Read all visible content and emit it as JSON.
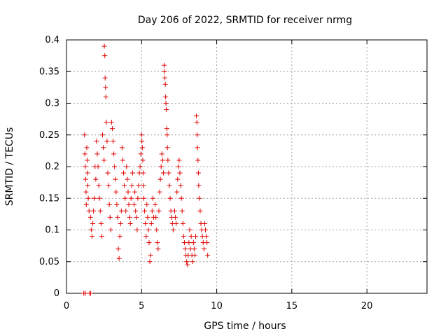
{
  "chart_data": {
    "type": "scatter",
    "title": "Day 206 of 2022, SRMTID for receiver nrmg",
    "xlabel": "GPS time / hours",
    "ylabel": "SRMTID / TECUs",
    "xlim": [
      0,
      24
    ],
    "ylim": [
      0,
      0.4
    ],
    "x_ticks": [
      0,
      5,
      10,
      15,
      20
    ],
    "x_tick_labels": [
      "0",
      "5",
      "10",
      "15",
      "20"
    ],
    "y_ticks": [
      0,
      0.05,
      0.1,
      0.15,
      0.2,
      0.25,
      0.3,
      0.35,
      0.4
    ],
    "y_tick_labels": [
      "0",
      "0.05",
      "0.1",
      "0.15",
      "0.2",
      "0.25",
      "0.3",
      "0.35",
      "0.4"
    ],
    "grid": true,
    "marker": "+",
    "color": "#e00000",
    "series": [
      {
        "name": "SRMTID",
        "points": [
          [
            1.15,
            0.0
          ],
          [
            1.25,
            0.0
          ],
          [
            1.55,
            0.0
          ],
          [
            1.6,
            0.0
          ],
          [
            1.2,
            0.25
          ],
          [
            1.22,
            0.22
          ],
          [
            1.25,
            0.2
          ],
          [
            1.28,
            0.18
          ],
          [
            1.3,
            0.16
          ],
          [
            1.32,
            0.14
          ],
          [
            1.35,
            0.23
          ],
          [
            1.38,
            0.21
          ],
          [
            1.4,
            0.19
          ],
          [
            1.42,
            0.17
          ],
          [
            1.45,
            0.15
          ],
          [
            1.5,
            0.13
          ],
          [
            1.6,
            0.12
          ],
          [
            1.65,
            0.1
          ],
          [
            1.7,
            0.09
          ],
          [
            1.75,
            0.11
          ],
          [
            1.8,
            0.13
          ],
          [
            1.85,
            0.15
          ],
          [
            1.9,
            0.2
          ],
          [
            1.95,
            0.18
          ],
          [
            2.0,
            0.24
          ],
          [
            2.05,
            0.22
          ],
          [
            2.1,
            0.2
          ],
          [
            2.15,
            0.17
          ],
          [
            2.2,
            0.15
          ],
          [
            2.25,
            0.13
          ],
          [
            2.3,
            0.11
          ],
          [
            2.35,
            0.09
          ],
          [
            2.4,
            0.25
          ],
          [
            2.45,
            0.23
          ],
          [
            2.5,
            0.21
          ],
          [
            2.52,
            0.39
          ],
          [
            2.55,
            0.375
          ],
          [
            2.57,
            0.34
          ],
          [
            2.6,
            0.325
          ],
          [
            2.62,
            0.31
          ],
          [
            2.65,
            0.27
          ],
          [
            2.7,
            0.24
          ],
          [
            2.75,
            0.19
          ],
          [
            2.8,
            0.17
          ],
          [
            2.85,
            0.14
          ],
          [
            2.9,
            0.12
          ],
          [
            2.95,
            0.1
          ],
          [
            3.0,
            0.27
          ],
          [
            3.05,
            0.26
          ],
          [
            3.1,
            0.24
          ],
          [
            3.15,
            0.22
          ],
          [
            3.2,
            0.2
          ],
          [
            3.25,
            0.18
          ],
          [
            3.3,
            0.16
          ],
          [
            3.35,
            0.14
          ],
          [
            3.4,
            0.12
          ],
          [
            3.45,
            0.07
          ],
          [
            3.5,
            0.055
          ],
          [
            3.55,
            0.09
          ],
          [
            3.6,
            0.11
          ],
          [
            3.65,
            0.13
          ],
          [
            3.7,
            0.23
          ],
          [
            3.75,
            0.21
          ],
          [
            3.8,
            0.19
          ],
          [
            3.85,
            0.17
          ],
          [
            3.9,
            0.15
          ],
          [
            3.95,
            0.13
          ],
          [
            4.0,
            0.2
          ],
          [
            4.05,
            0.18
          ],
          [
            4.1,
            0.16
          ],
          [
            4.15,
            0.14
          ],
          [
            4.2,
            0.12
          ],
          [
            4.25,
            0.11
          ],
          [
            4.3,
            0.15
          ],
          [
            4.35,
            0.17
          ],
          [
            4.4,
            0.19
          ],
          [
            4.5,
            0.14
          ],
          [
            4.55,
            0.16
          ],
          [
            4.6,
            0.13
          ],
          [
            4.65,
            0.12
          ],
          [
            4.7,
            0.1
          ],
          [
            4.75,
            0.15
          ],
          [
            4.8,
            0.17
          ],
          [
            4.85,
            0.19
          ],
          [
            4.9,
            0.2
          ],
          [
            4.95,
            0.22
          ],
          [
            5.0,
            0.25
          ],
          [
            5.02,
            0.24
          ],
          [
            5.05,
            0.23
          ],
          [
            5.08,
            0.21
          ],
          [
            5.1,
            0.19
          ],
          [
            5.12,
            0.17
          ],
          [
            5.15,
            0.15
          ],
          [
            5.2,
            0.13
          ],
          [
            5.25,
            0.11
          ],
          [
            5.3,
            0.09
          ],
          [
            5.35,
            0.14
          ],
          [
            5.4,
            0.12
          ],
          [
            5.45,
            0.1
          ],
          [
            5.5,
            0.08
          ],
          [
            5.55,
            0.05
          ],
          [
            5.6,
            0.06
          ],
          [
            5.65,
            0.11
          ],
          [
            5.7,
            0.13
          ],
          [
            5.75,
            0.15
          ],
          [
            5.8,
            0.12
          ],
          [
            5.9,
            0.14
          ],
          [
            5.95,
            0.12
          ],
          [
            6.0,
            0.1
          ],
          [
            6.05,
            0.08
          ],
          [
            6.1,
            0.07
          ],
          [
            6.15,
            0.13
          ],
          [
            6.2,
            0.16
          ],
          [
            6.25,
            0.18
          ],
          [
            6.3,
            0.2
          ],
          [
            6.35,
            0.22
          ],
          [
            6.4,
            0.21
          ],
          [
            6.45,
            0.19
          ],
          [
            6.5,
            0.36
          ],
          [
            6.52,
            0.35
          ],
          [
            6.55,
            0.34
          ],
          [
            6.58,
            0.33
          ],
          [
            6.6,
            0.31
          ],
          [
            6.62,
            0.3
          ],
          [
            6.65,
            0.29
          ],
          [
            6.68,
            0.26
          ],
          [
            6.7,
            0.25
          ],
          [
            6.72,
            0.23
          ],
          [
            6.75,
            0.21
          ],
          [
            6.8,
            0.19
          ],
          [
            6.85,
            0.17
          ],
          [
            6.9,
            0.15
          ],
          [
            6.95,
            0.13
          ],
          [
            7.0,
            0.12
          ],
          [
            7.05,
            0.11
          ],
          [
            7.1,
            0.1
          ],
          [
            7.2,
            0.13
          ],
          [
            7.25,
            0.12
          ],
          [
            7.3,
            0.11
          ],
          [
            7.35,
            0.16
          ],
          [
            7.4,
            0.18
          ],
          [
            7.45,
            0.2
          ],
          [
            7.5,
            0.21
          ],
          [
            7.55,
            0.19
          ],
          [
            7.6,
            0.17
          ],
          [
            7.65,
            0.15
          ],
          [
            7.7,
            0.13
          ],
          [
            7.75,
            0.11
          ],
          [
            7.8,
            0.09
          ],
          [
            7.85,
            0.08
          ],
          [
            7.9,
            0.07
          ],
          [
            7.95,
            0.06
          ],
          [
            8.0,
            0.05
          ],
          [
            8.05,
            0.045
          ],
          [
            8.1,
            0.06
          ],
          [
            8.15,
            0.08
          ],
          [
            8.2,
            0.1
          ],
          [
            8.25,
            0.07
          ],
          [
            8.3,
            0.09
          ],
          [
            8.35,
            0.06
          ],
          [
            8.4,
            0.05
          ],
          [
            8.45,
            0.08
          ],
          [
            8.5,
            0.07
          ],
          [
            8.55,
            0.06
          ],
          [
            8.6,
            0.09
          ],
          [
            8.65,
            0.28
          ],
          [
            8.68,
            0.27
          ],
          [
            8.7,
            0.25
          ],
          [
            8.72,
            0.23
          ],
          [
            8.75,
            0.21
          ],
          [
            8.78,
            0.19
          ],
          [
            8.8,
            0.17
          ],
          [
            8.85,
            0.15
          ],
          [
            8.9,
            0.13
          ],
          [
            8.95,
            0.11
          ],
          [
            9.0,
            0.1
          ],
          [
            9.05,
            0.09
          ],
          [
            9.1,
            0.08
          ],
          [
            9.15,
            0.07
          ],
          [
            9.2,
            0.11
          ],
          [
            9.25,
            0.1
          ],
          [
            9.3,
            0.09
          ],
          [
            9.35,
            0.08
          ],
          [
            9.4,
            0.06
          ]
        ]
      }
    ]
  }
}
